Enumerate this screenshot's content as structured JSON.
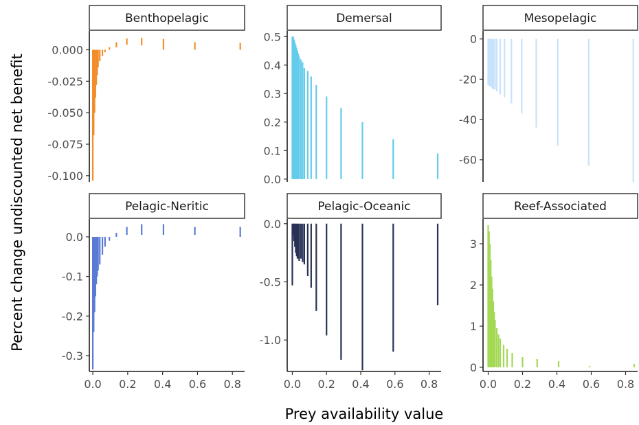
{
  "figure": {
    "xlabel": "Prey availability value",
    "ylabel": "Percent change undiscounted net benefit"
  },
  "chart_data": [
    {
      "type": "bar",
      "title": "Benthopelagic",
      "color": "#F28E2B",
      "ylim": [
        -0.105,
        0.015
      ],
      "yticks": [
        0.0,
        -0.025,
        -0.05,
        -0.075,
        -0.1
      ],
      "ytick_labels": [
        "0.000",
        "-0.025",
        "-0.050",
        "-0.075",
        "-0.100"
      ],
      "xlim": [
        -0.02,
        0.87
      ],
      "xticks": [
        0.0,
        0.2,
        0.4,
        0.6,
        0.8
      ],
      "xtick_labels": [
        "0.0",
        "0.2",
        "0.4",
        "0.6",
        "0.8"
      ],
      "x": [
        0.0,
        0.005,
        0.01,
        0.015,
        0.02,
        0.025,
        0.03,
        0.04,
        0.055,
        0.07,
        0.095,
        0.135,
        0.195,
        0.28,
        0.405,
        0.585,
        0.845
      ],
      "y": [
        -0.104,
        -0.068,
        -0.05,
        -0.038,
        -0.028,
        -0.02,
        -0.014,
        -0.009,
        -0.005,
        0.0,
        0.002,
        0.006,
        0.009,
        0.0095,
        0.0085,
        0.006,
        0.0055
      ],
      "y_low": [
        0.0,
        0.0,
        0.0,
        0.0,
        0.0,
        0.0,
        0.0,
        0.0,
        0.0,
        -0.002,
        0.0,
        0.002,
        0.004,
        0.0035,
        0.0,
        0.0,
        0.0
      ]
    },
    {
      "type": "bar",
      "title": "Demersal",
      "color": "#64CCEB",
      "ylim": [
        -0.01,
        0.52
      ],
      "yticks": [
        0.0,
        0.1,
        0.2,
        0.3,
        0.4,
        0.5
      ],
      "ytick_labels": [
        "0.0",
        "0.1",
        "0.2",
        "0.3",
        "0.4",
        "0.5"
      ],
      "xlim": [
        -0.03,
        0.87
      ],
      "xticks": [
        0.0,
        0.2,
        0.4,
        0.6,
        0.8
      ],
      "xtick_labels": [
        "0.0",
        "0.2",
        "0.4",
        "0.6",
        "0.8"
      ],
      "x": [
        0.0,
        0.005,
        0.01,
        0.015,
        0.02,
        0.025,
        0.03,
        0.035,
        0.04,
        0.05,
        0.06,
        0.07,
        0.09,
        0.11,
        0.14,
        0.2,
        0.285,
        0.41,
        0.59,
        0.85
      ],
      "y": [
        0.5,
        0.5,
        0.49,
        0.48,
        0.47,
        0.46,
        0.45,
        0.44,
        0.43,
        0.42,
        0.41,
        0.39,
        0.38,
        0.36,
        0.33,
        0.29,
        0.25,
        0.2,
        0.14,
        0.09
      ],
      "y_low": [
        0,
        0,
        0,
        0,
        0,
        0,
        0,
        0,
        0,
        0,
        0,
        0,
        0,
        0,
        0,
        0,
        0,
        0,
        0,
        0
      ]
    },
    {
      "type": "bar",
      "title": "Mesopelagic",
      "color": "#C6E3FB",
      "ylim": [
        -71,
        4
      ],
      "yticks": [
        0,
        -20,
        -40,
        -60
      ],
      "ytick_labels": [
        "0",
        "-20",
        "-40",
        "-60"
      ],
      "xlim": [
        -0.03,
        0.87
      ],
      "xticks": [
        0.0,
        0.2,
        0.4,
        0.6,
        0.8
      ],
      "xtick_labels": [
        "0.0",
        "0.2",
        "0.4",
        "0.6",
        "0.8"
      ],
      "x": [
        0.0,
        0.005,
        0.01,
        0.015,
        0.02,
        0.025,
        0.03,
        0.04,
        0.05,
        0.07,
        0.095,
        0.135,
        0.195,
        0.28,
        0.405,
        0.585,
        0.845
      ],
      "y": [
        -23,
        -23,
        -23.5,
        -23.5,
        -24,
        -24.5,
        -25,
        -25,
        -26,
        -27.5,
        -29,
        -32,
        -37,
        -44,
        -53,
        -63,
        -71
      ],
      "y_low": [
        0,
        0,
        0,
        0,
        0,
        0,
        0,
        0,
        0,
        0,
        0,
        0,
        0,
        0,
        0,
        0,
        0
      ]
    },
    {
      "type": "bar",
      "title": "Pelagic-Neritic",
      "color": "#5B7BD5",
      "ylim": [
        -0.34,
        0.045
      ],
      "yticks": [
        0.0,
        -0.1,
        -0.2,
        -0.3
      ],
      "ytick_labels": [
        "0.0",
        "-0.1",
        "-0.2",
        "-0.3"
      ],
      "xlim": [
        -0.02,
        0.87
      ],
      "xticks": [
        0.0,
        0.2,
        0.4,
        0.6,
        0.8
      ],
      "xtick_labels": [
        "0.0",
        "0.2",
        "0.4",
        "0.6",
        "0.8"
      ],
      "x": [
        0.0,
        0.005,
        0.01,
        0.015,
        0.02,
        0.025,
        0.03,
        0.04,
        0.055,
        0.07,
        0.095,
        0.135,
        0.195,
        0.28,
        0.405,
        0.585,
        0.845
      ],
      "y": [
        -0.335,
        -0.24,
        -0.19,
        -0.15,
        -0.12,
        -0.1,
        -0.085,
        -0.07,
        -0.045,
        -0.025,
        -0.01,
        0.01,
        0.025,
        0.032,
        0.032,
        0.025,
        0.025
      ],
      "y_low": [
        0,
        0,
        0,
        0,
        0,
        0,
        0,
        0,
        0,
        0,
        0,
        0,
        0.005,
        0.005,
        0.005,
        0.005,
        0.0
      ]
    },
    {
      "type": "bar",
      "title": "Pelagic-Oceanic",
      "color": "#283255",
      "ylim": [
        -1.27,
        0.04
      ],
      "yticks": [
        0.0,
        -0.5,
        -1.0
      ],
      "ytick_labels": [
        "0.0",
        "-0.5",
        "-1.0"
      ],
      "xlim": [
        -0.03,
        0.87
      ],
      "xticks": [
        0.0,
        0.2,
        0.4,
        0.6,
        0.8
      ],
      "xtick_labels": [
        "0.0",
        "0.2",
        "0.4",
        "0.6",
        "0.8"
      ],
      "x": [
        0.0,
        0.005,
        0.01,
        0.015,
        0.02,
        0.025,
        0.03,
        0.035,
        0.04,
        0.05,
        0.06,
        0.07,
        0.09,
        0.11,
        0.14,
        0.2,
        0.285,
        0.41,
        0.59,
        0.85
      ],
      "y": [
        -0.53,
        -0.1,
        -0.15,
        -0.2,
        -0.25,
        -0.28,
        -0.3,
        -0.3,
        -0.32,
        -0.3,
        -0.33,
        -0.35,
        -0.45,
        -0.55,
        -0.75,
        -0.96,
        -1.17,
        -1.26,
        -1.1,
        -0.7
      ],
      "y_low": [
        0,
        0,
        0,
        0,
        0,
        0,
        0,
        0,
        0,
        0,
        0,
        0,
        0,
        0,
        0,
        0,
        0,
        0,
        0,
        0
      ]
    },
    {
      "type": "bar",
      "title": "Reef-Associated",
      "color": "#A3D955",
      "ylim": [
        -0.1,
        3.6
      ],
      "yticks": [
        0,
        1,
        2,
        3
      ],
      "ytick_labels": [
        "0",
        "1",
        "2",
        "3"
      ],
      "xlim": [
        -0.03,
        0.87
      ],
      "xticks": [
        0.0,
        0.2,
        0.4,
        0.6,
        0.8
      ],
      "xtick_labels": [
        "0.0",
        "0.2",
        "0.4",
        "0.6",
        "0.8"
      ],
      "x": [
        0.0,
        0.005,
        0.01,
        0.015,
        0.02,
        0.025,
        0.03,
        0.035,
        0.04,
        0.05,
        0.06,
        0.07,
        0.09,
        0.11,
        0.14,
        0.2,
        0.285,
        0.41,
        0.59,
        0.85
      ],
      "y": [
        3.45,
        3.3,
        3.0,
        2.6,
        2.2,
        1.9,
        1.6,
        1.35,
        1.15,
        0.95,
        0.8,
        0.7,
        0.55,
        0.45,
        0.35,
        0.25,
        0.2,
        0.15,
        0.03,
        0.08
      ],
      "y_low": [
        0,
        0,
        0,
        0,
        0,
        0,
        0,
        0,
        0,
        0,
        0,
        0,
        0,
        0,
        0,
        0,
        0,
        0,
        0,
        0
      ]
    }
  ]
}
